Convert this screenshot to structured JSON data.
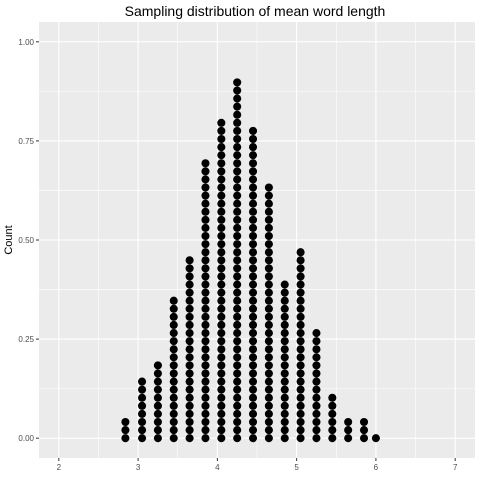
{
  "chart_data": {
    "type": "scatter",
    "subtype": "dotplot",
    "title": "Sampling distribution of mean word length",
    "xlabel": "",
    "ylabel": "Count",
    "xlim": [
      1.75,
      7.25
    ],
    "ylim": [
      -0.05,
      1.05
    ],
    "x_ticks": [
      2,
      3,
      4,
      5,
      6,
      7
    ],
    "x_tick_labels": [
      "2",
      "3",
      "4",
      "5",
      "6",
      "7"
    ],
    "y_ticks": [
      0,
      0.25,
      0.5,
      0.75,
      1
    ],
    "y_tick_labels": [
      "0.00",
      "0.25",
      "0.50",
      "0.75",
      "1.00"
    ],
    "grid": true,
    "legend": "none",
    "dot_color": "#000000",
    "panel_background": "#ebebeb",
    "grid_color": "#ffffff",
    "dot_step": 0.0204,
    "series": [
      {
        "x": [
          2.84,
          3.05,
          3.25,
          3.45,
          3.65,
          3.85,
          4.05,
          4.25,
          4.45,
          4.65,
          4.85,
          5.05,
          5.25,
          5.45,
          5.65,
          5.85,
          6.0
        ],
        "counts": [
          3,
          8,
          10,
          18,
          23,
          35,
          40,
          45,
          39,
          32,
          20,
          24,
          14,
          6,
          3,
          3,
          1
        ]
      }
    ]
  }
}
